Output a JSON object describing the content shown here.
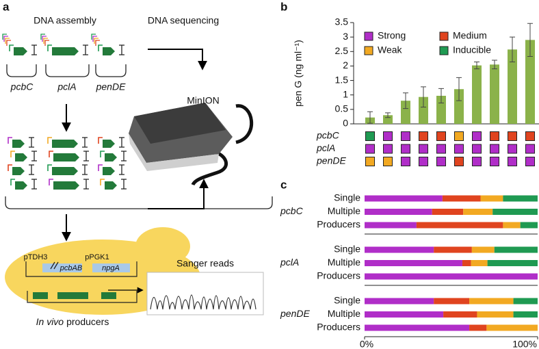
{
  "panel_labels": [
    "a",
    "b",
    "c"
  ],
  "diagram": {
    "dna_assembly": "DNA assembly",
    "dna_sequencing": "DNA sequencing",
    "genes": [
      "pcbC",
      "pclA",
      "penDE"
    ],
    "minion": "MinION",
    "ptdh3": "pTDH3",
    "pcbab": "pcbAB",
    "ppgk1": "pPGK1",
    "npga": "npgA",
    "sanger": "Sanger reads",
    "in_vivo": "In vivo",
    "producers": "producers"
  },
  "chart_data": [
    {
      "type": "bar",
      "ylabel": "pen G (ng ml⁻¹)",
      "values": [
        0.22,
        0.3,
        0.8,
        0.93,
        0.97,
        1.2,
        2.02,
        2.05,
        2.57,
        2.9
      ],
      "errors": [
        0.2,
        0.08,
        0.27,
        0.35,
        0.25,
        0.4,
        0.12,
        0.15,
        0.43,
        0.57
      ],
      "color": "#8bb24a",
      "ylim": [
        0,
        3.5
      ],
      "yticks": [
        0,
        0.5,
        1,
        1.5,
        2,
        2.5,
        3,
        3.5
      ],
      "legend": [
        {
          "name": "Strong",
          "color": "#b02ec8"
        },
        {
          "name": "Medium",
          "color": "#e0441f"
        },
        {
          "name": "Weak",
          "color": "#f2a922"
        },
        {
          "name": "Inducible",
          "color": "#1f9a52"
        }
      ],
      "promoter_rows": [
        {
          "name": "pcbC",
          "levels": [
            3,
            0,
            0,
            1,
            1,
            2,
            0,
            1,
            1,
            1
          ]
        },
        {
          "name": "pclA",
          "levels": [
            0,
            0,
            0,
            0,
            0,
            0,
            0,
            0,
            0,
            0
          ]
        },
        {
          "name": "penDE",
          "levels": [
            2,
            2,
            0,
            0,
            0,
            1,
            0,
            0,
            0,
            0
          ]
        }
      ]
    },
    {
      "type": "stacked_barh",
      "groups": [
        "pcbC",
        "pclA",
        "penDE"
      ],
      "categories": [
        "Single",
        "Multiple",
        "Producers",
        "Single",
        "Multiple",
        "Producers",
        "Single",
        "Multiple",
        "Producers"
      ],
      "series": [
        {
          "name": "Strong",
          "color": "#b02ec8",
          "values": [
            45,
            39,
            30,
            40,
            56.5,
            100,
            40,
            45.5,
            60.5
          ]
        },
        {
          "name": "Medium",
          "color": "#e0441f",
          "values": [
            22,
            18,
            50,
            22,
            5,
            0,
            20.5,
            19.5,
            10
          ]
        },
        {
          "name": "Weak",
          "color": "#f2a922",
          "values": [
            13,
            17,
            10,
            13,
            9.5,
            0,
            25.5,
            21,
            29.5
          ]
        },
        {
          "name": "Inducible",
          "color": "#1f9a52",
          "values": [
            20,
            26,
            10,
            25,
            29,
            0,
            14,
            14,
            0
          ]
        }
      ],
      "xlim": [
        0,
        100
      ],
      "xticks": [
        {
          "value": 0,
          "label": "0%"
        },
        {
          "value": 100,
          "label": "100%"
        }
      ]
    }
  ]
}
